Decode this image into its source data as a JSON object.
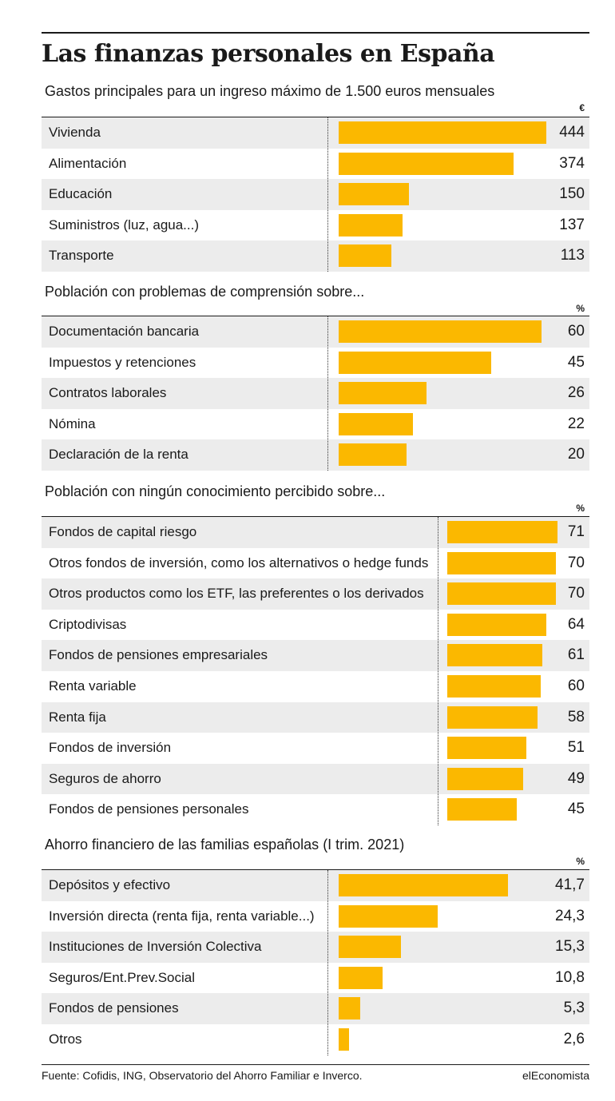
{
  "title": "Las finanzas personales en España",
  "chart_data": [
    {
      "type": "bar",
      "orientation": "horizontal",
      "title": "Gastos principales para un ingreso máximo de 1.500 euros mensuales",
      "unit": "€",
      "categories": [
        "Vivienda",
        "Alimentación",
        "Educación",
        "Suministros (luz, agua...)",
        "Transporte"
      ],
      "values": [
        444,
        374,
        150,
        137,
        113
      ],
      "value_labels": [
        "444",
        "374",
        "150",
        "137",
        "113"
      ],
      "xlim": [
        0,
        444
      ],
      "grid": false,
      "bar_color": "#fbb800"
    },
    {
      "type": "bar",
      "orientation": "horizontal",
      "title": "Población con problemas de comprensión sobre...",
      "unit": "%",
      "categories": [
        "Documentación bancaria",
        "Impuestos y retenciones",
        "Contratos laborales",
        "Nómina",
        "Declaración de la renta"
      ],
      "values": [
        60,
        45,
        26,
        22,
        20
      ],
      "value_labels": [
        "60",
        "45",
        "26",
        "22",
        "20"
      ],
      "xlim": [
        0,
        60
      ],
      "grid": false,
      "bar_color": "#fbb800"
    },
    {
      "type": "bar",
      "orientation": "horizontal",
      "title": "Población con ningún conocimiento percibido sobre...",
      "unit": "%",
      "categories": [
        "Fondos de capital riesgo",
        "Otros fondos de inversión, como los alternativos o hedge funds",
        "Otros productos como los ETF, las preferentes o los derivados",
        "Criptodivisas",
        "Fondos de pensiones empresariales",
        "Renta variable",
        "Renta fija",
        "Fondos de inversión",
        "Seguros de ahorro",
        "Fondos de pensiones personales"
      ],
      "values": [
        71,
        70,
        70,
        64,
        61,
        60,
        58,
        51,
        49,
        45
      ],
      "value_labels": [
        "71",
        "70",
        "70",
        "64",
        "61",
        "60",
        "58",
        "51",
        "49",
        "45"
      ],
      "xlim": [
        0,
        71
      ],
      "grid": false,
      "bar_color": "#fbb800"
    },
    {
      "type": "bar",
      "orientation": "horizontal",
      "title": "Ahorro financiero de las familias españolas (I trim. 2021)",
      "unit": "%",
      "categories": [
        "Depósitos y efectivo",
        "Inversión directa (renta fija, renta variable...)",
        "Instituciones de Inversión Colectiva",
        "Seguros/Ent.Prev.Social",
        "Fondos de pensiones",
        "Otros"
      ],
      "values": [
        41.7,
        24.3,
        15.3,
        10.8,
        5.3,
        2.6
      ],
      "value_labels": [
        "41,7",
        "24,3",
        "15,3",
        "10,8",
        "5,3",
        "2,6"
      ],
      "xlim": [
        0,
        41.7
      ],
      "grid": false,
      "bar_color": "#fbb800"
    }
  ],
  "footer": {
    "source": "Fuente: Cofidis, ING, Observatorio del Ahorro Familiar e Inverco.",
    "brand": "elEconomista"
  }
}
